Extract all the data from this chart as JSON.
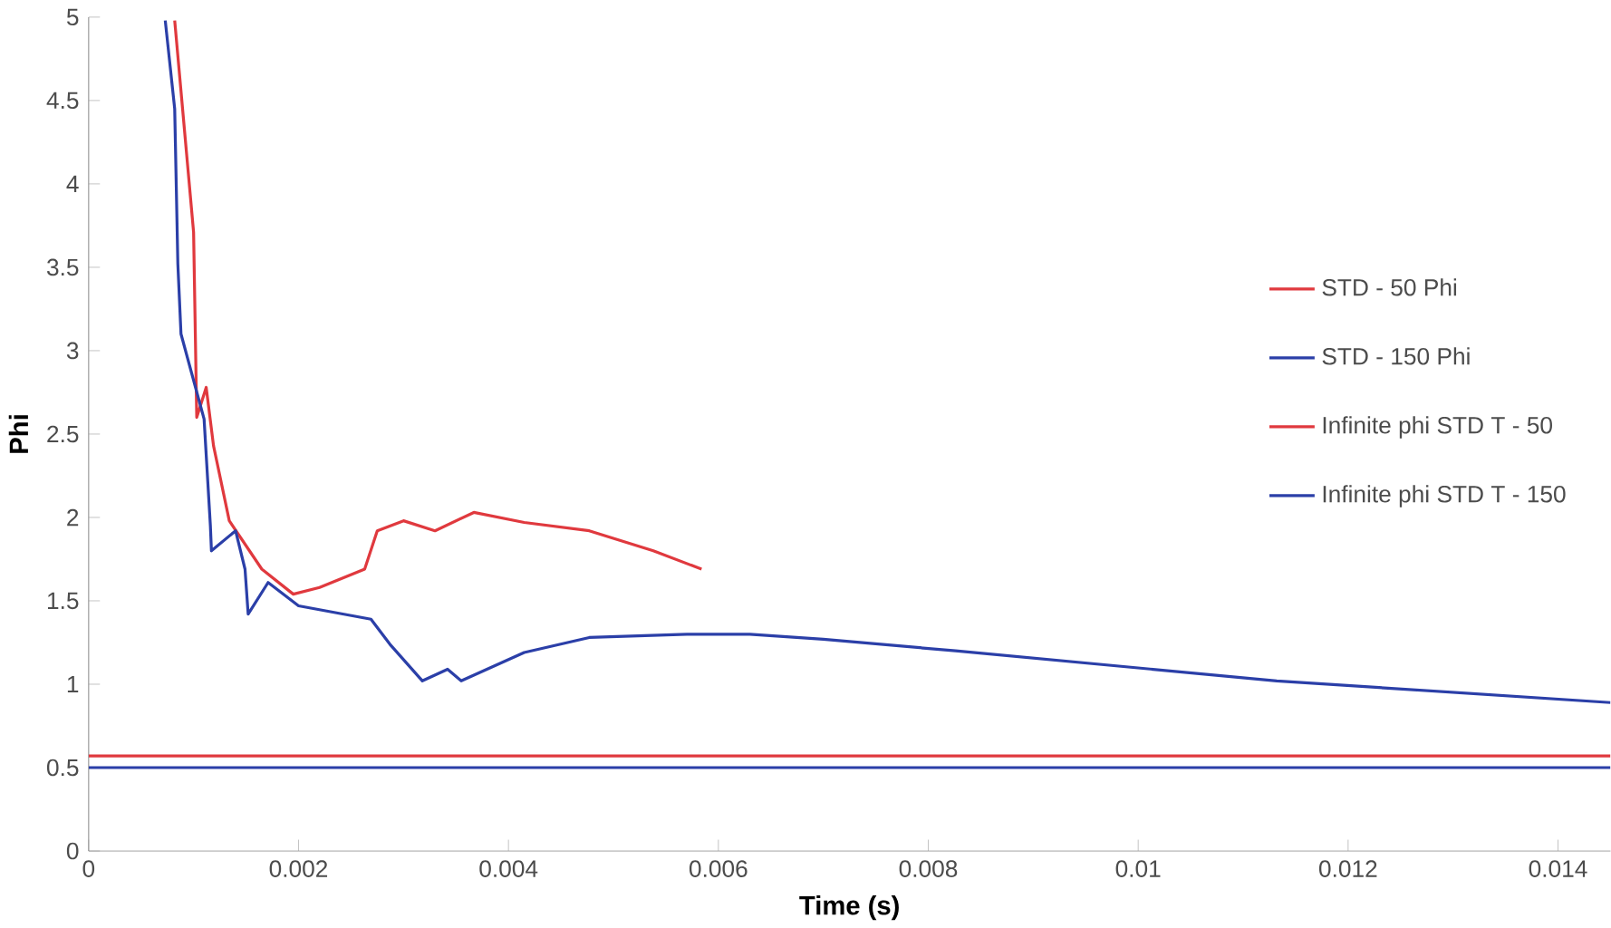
{
  "chart_data": {
    "type": "line",
    "xlabel": "Time (s)",
    "ylabel": "Phi",
    "xlim": [
      0,
      0.0145
    ],
    "ylim": [
      0,
      5
    ],
    "xticks": [
      0,
      0.002,
      0.004,
      0.006,
      0.008,
      0.01,
      0.012,
      0.014
    ],
    "yticks": [
      0,
      0.5,
      1,
      1.5,
      2,
      2.5,
      3,
      3.5,
      4,
      4.5,
      5
    ],
    "grid": false,
    "legend": "right",
    "marker": "none",
    "line_style": "solid",
    "series": [
      {
        "name": "STD - 50 Phi",
        "color": "#e0393e",
        "x": [
          0.00082,
          0.001,
          0.00103,
          0.00112,
          0.00119,
          0.00134,
          0.00165,
          0.00195,
          0.0022,
          0.00263,
          0.00275,
          0.003,
          0.0033,
          0.00367,
          0.00415,
          0.00477,
          0.00538,
          0.00584
        ],
        "values": [
          4.98,
          3.71,
          2.6,
          2.78,
          2.43,
          1.98,
          1.69,
          1.54,
          1.58,
          1.69,
          1.92,
          1.98,
          1.92,
          2.03,
          1.97,
          1.92,
          1.8,
          1.69
        ]
      },
      {
        "name": "STD - 150 Phi",
        "color": "#2b3fa8",
        "x": [
          0.00073,
          0.00082,
          0.00085,
          0.00088,
          0.0011,
          0.00116,
          0.00117,
          0.0014,
          0.00149,
          0.00152,
          0.00171,
          0.002,
          0.00269,
          0.00287,
          0.00318,
          0.00342,
          0.00355,
          0.00415,
          0.00477,
          0.0057,
          0.0063,
          0.007,
          0.00826,
          0.01132,
          0.0145
        ],
        "values": [
          4.98,
          4.45,
          3.52,
          3.1,
          2.59,
          1.95,
          1.8,
          1.92,
          1.69,
          1.42,
          1.61,
          1.47,
          1.39,
          1.24,
          1.02,
          1.09,
          1.02,
          1.19,
          1.28,
          1.3,
          1.3,
          1.27,
          1.2,
          1.02,
          0.89
        ]
      },
      {
        "name": "Infinite phi STD T - 50",
        "color": "#e0393e",
        "x": [
          0,
          0.0145
        ],
        "values": [
          0.57,
          0.57
        ]
      },
      {
        "name": "Infinite phi STD T - 150",
        "color": "#2b3fa8",
        "x": [
          0,
          0.0145
        ],
        "values": [
          0.5,
          0.5
        ]
      }
    ]
  }
}
